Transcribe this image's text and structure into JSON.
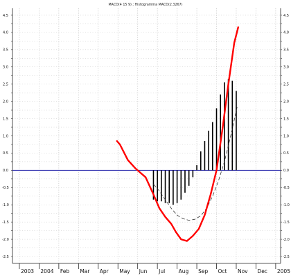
{
  "chart_data": {
    "type": "line",
    "title": "MACD(4 15 9) ; Histogramma MACD(2.3267)",
    "xlabel": "",
    "ylabel": "",
    "x_tick_labels": [
      "2003",
      "2004",
      "Feb",
      "Mar",
      "Apr",
      "May",
      "Jun",
      "Jul",
      "Aug",
      "Sep",
      "Oct",
      "Nov",
      "Dec",
      "2005"
    ],
    "x_tick_positions": [
      -0.5,
      0.5,
      1.5,
      2.5,
      3.5,
      4.5,
      5.5,
      6.5,
      7.5,
      8.5,
      9.5,
      10.5,
      11.5,
      12.5
    ],
    "x_range": [
      -0.85,
      12.75
    ],
    "y_ticks": [
      -2.5,
      -2.25,
      -2.0,
      -1.75,
      -1.5,
      -1.25,
      -1.0,
      -0.75,
      -0.5,
      -0.25,
      0.0,
      0.25,
      0.5,
      0.75,
      1.0,
      1.25,
      1.5,
      1.75,
      2.0,
      2.25,
      2.5,
      2.75,
      3.0,
      3.25,
      3.5,
      3.75,
      4.0,
      4.25,
      4.5
    ],
    "y_tick_labels": [
      "-2.5",
      "",
      "-2.0",
      "",
      "-1.5",
      "",
      "-1.0",
      "",
      "-0.5",
      "",
      "0.0",
      "",
      "0.5",
      "",
      "1.0",
      "",
      "1.5",
      "",
      "2.0",
      "",
      "2.5",
      "",
      "3.0",
      "",
      "3.5",
      "",
      "4.0",
      "",
      "4.5"
    ],
    "ylim": [
      -2.7,
      4.7
    ],
    "grid": true,
    "zero_line_color": "#2222aa",
    "series": [
      {
        "kind": "line",
        "color": "#ff0000",
        "x": [
          4.45,
          4.6,
          5.0,
          5.4,
          5.9,
          6.3,
          6.6,
          6.9,
          7.2,
          7.45,
          7.7,
          8.0,
          8.3,
          8.6,
          8.9,
          9.2,
          9.5,
          9.8,
          10.1,
          10.4,
          10.6
        ],
        "y": [
          0.85,
          0.75,
          0.3,
          0.05,
          -0.2,
          -0.7,
          -1.1,
          -1.35,
          -1.55,
          -1.8,
          -2.0,
          -2.05,
          -1.9,
          -1.7,
          -1.3,
          -0.7,
          0.0,
          1.2,
          2.5,
          3.7,
          4.15
        ]
      },
      {
        "kind": "dashed-line",
        "color": "#333333",
        "x": [
          6.3,
          6.6,
          6.9,
          7.2,
          7.5,
          7.8,
          8.1,
          8.4,
          8.7,
          9.0,
          9.3,
          9.6,
          9.9,
          10.2,
          10.55
        ],
        "y": [
          -0.4,
          -0.6,
          -0.85,
          -1.1,
          -1.3,
          -1.4,
          -1.45,
          -1.42,
          -1.32,
          -1.1,
          -0.75,
          -0.3,
          0.25,
          0.95,
          1.85
        ]
      },
      {
        "kind": "histogram",
        "color": "#000000",
        "x": [
          6.3,
          6.5,
          6.7,
          6.9,
          7.1,
          7.3,
          7.5,
          7.7,
          7.9,
          8.1,
          8.3,
          8.5,
          8.7,
          8.9,
          9.1,
          9.3,
          9.5,
          9.7,
          9.9,
          10.1,
          10.3,
          10.5
        ],
        "y": [
          -0.85,
          -0.9,
          -0.9,
          -0.95,
          -0.95,
          -1.0,
          -0.95,
          -0.85,
          -0.65,
          -0.45,
          -0.2,
          0.15,
          0.55,
          0.85,
          1.15,
          1.4,
          1.8,
          2.2,
          2.55,
          2.65,
          2.6,
          2.3
        ]
      }
    ]
  }
}
